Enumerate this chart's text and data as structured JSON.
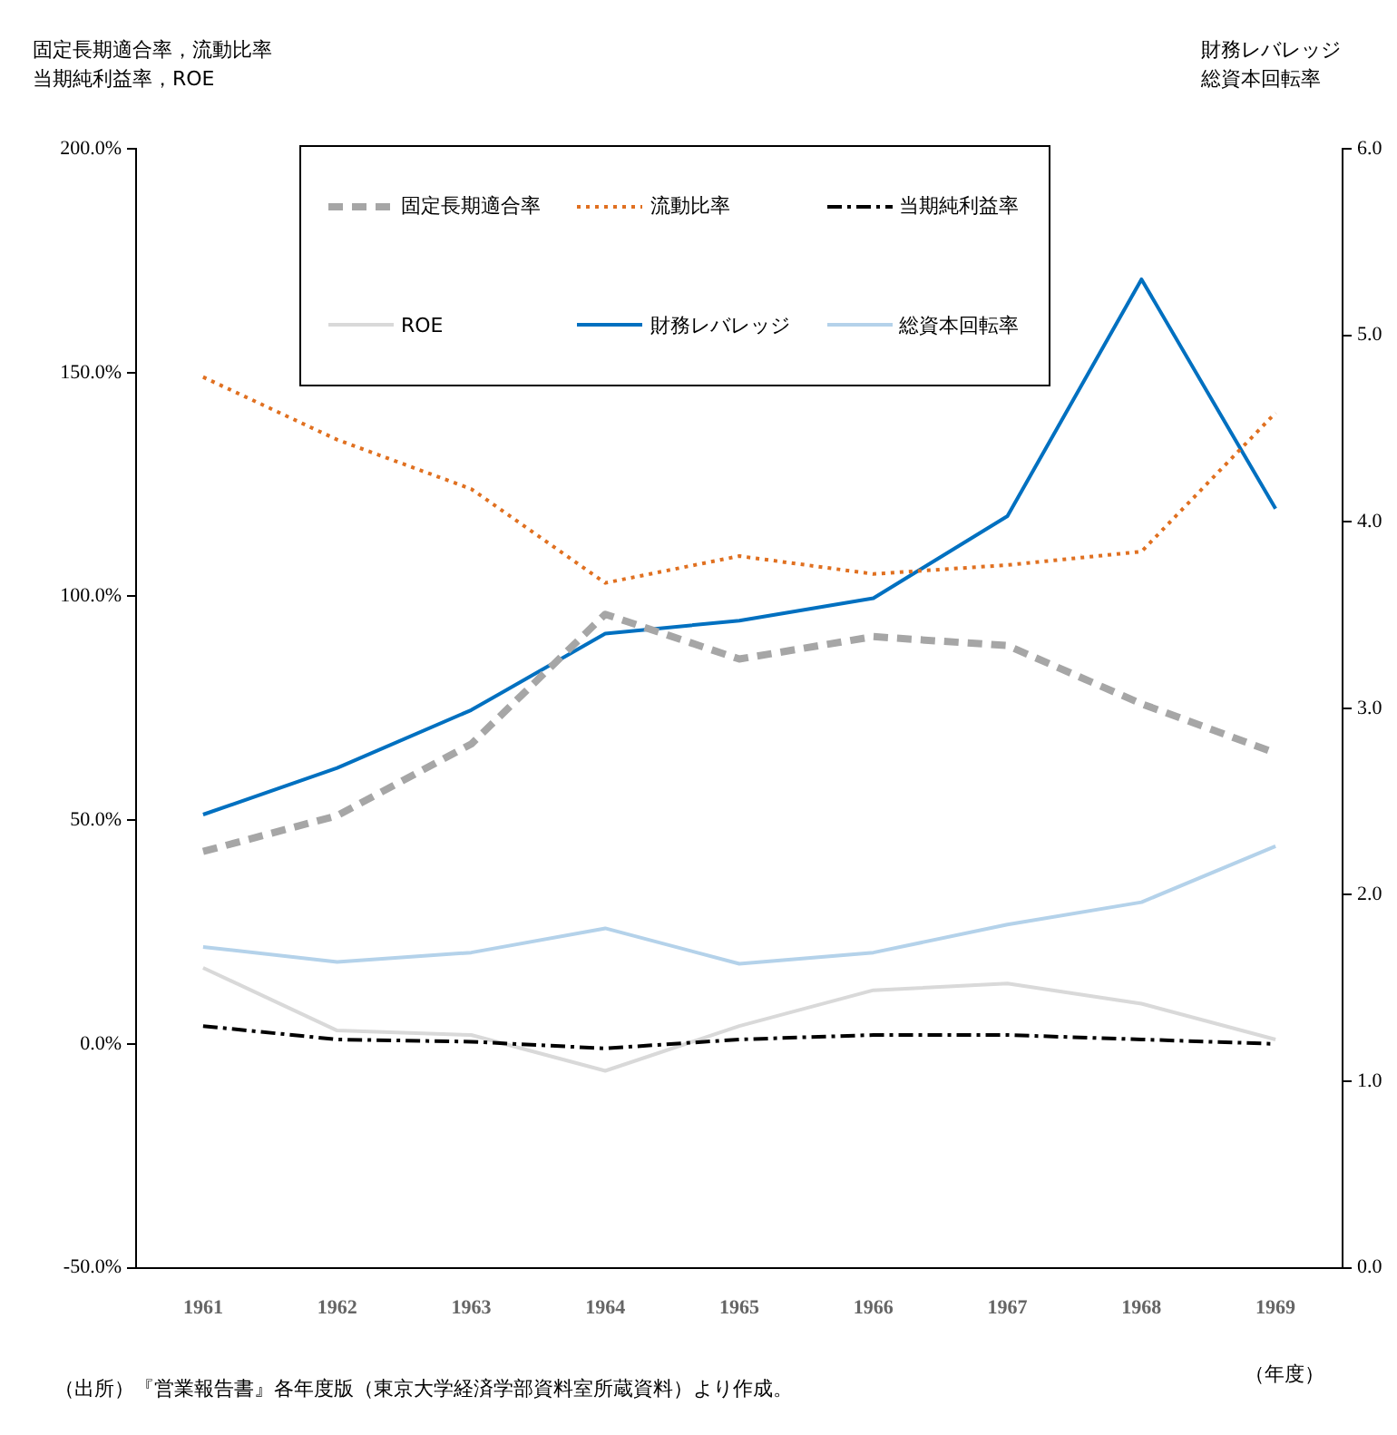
{
  "chart_data": {
    "type": "line",
    "ylabel": "固定長期適合率，流動比率当期純利益率，ROE",
    "y2label": "財務レバレッジ総資本回転率",
    "xlabel": "（年度）",
    "categories": [
      "1961",
      "1962",
      "1963",
      "1964",
      "1965",
      "1966",
      "1967",
      "1968",
      "1969"
    ],
    "ylim": [
      -50,
      200
    ],
    "yticks": [
      {
        "value": -50,
        "label": "-50.0%"
      },
      {
        "value": 0,
        "label": "0.0%"
      },
      {
        "value": 50,
        "label": "50.0%"
      },
      {
        "value": 100,
        "label": "100.0%"
      },
      {
        "value": 150,
        "label": "150.0%"
      },
      {
        "value": 200,
        "label": "200.0%"
      }
    ],
    "y2lim": [
      0,
      6
    ],
    "y2ticks": [
      {
        "value": 0,
        "label": "0.0"
      },
      {
        "value": 1,
        "label": "1.0"
      },
      {
        "value": 2,
        "label": "2.0"
      },
      {
        "value": 3,
        "label": "3.0"
      },
      {
        "value": 4,
        "label": "4.0"
      },
      {
        "value": 5,
        "label": "5.0"
      },
      {
        "value": 6,
        "label": "6.0"
      }
    ],
    "series": [
      {
        "name": "固定長期適合率",
        "color": "#a6a6a6",
        "line_style": "dashed",
        "values": [
          43,
          51,
          67,
          96,
          86,
          91,
          89,
          76,
          65
        ]
      },
      {
        "name": "流動比率",
        "color": "#e07020",
        "line_style": "dotted",
        "values": [
          149,
          135,
          124,
          103,
          109,
          105,
          107,
          110,
          141
        ]
      },
      {
        "name": "当期純利益率",
        "color": "#000000",
        "line_style": "dashdot",
        "values": [
          4,
          1,
          0.5,
          -1,
          1,
          2,
          2,
          1,
          0
        ]
      },
      {
        "name": "ROE",
        "color": "#d9d9d9",
        "line_style": "solid",
        "values": [
          17,
          3,
          2,
          -6,
          4,
          12,
          13.5,
          9,
          1
        ]
      },
      {
        "name": "財務レバレッジ",
        "color": "#0070c0",
        "line_style": "solid",
        "axis": "y2",
        "values": [
          2.43,
          2.68,
          2.99,
          3.4,
          3.47,
          3.59,
          4.03,
          5.3,
          4.07
        ]
      },
      {
        "name": "総資本回転率",
        "color": "#b4d2ea",
        "line_style": "solid",
        "axis": "y2",
        "values": [
          1.72,
          1.64,
          1.69,
          1.82,
          1.63,
          1.69,
          1.84,
          1.96,
          2.26
        ]
      }
    ],
    "legend": "top",
    "marker": "none",
    "grid": false,
    "annotations": [
      "（出所）『営業報告書』各年度版（東京大学経済学部資料室所蔵資料）より作成。"
    ]
  }
}
